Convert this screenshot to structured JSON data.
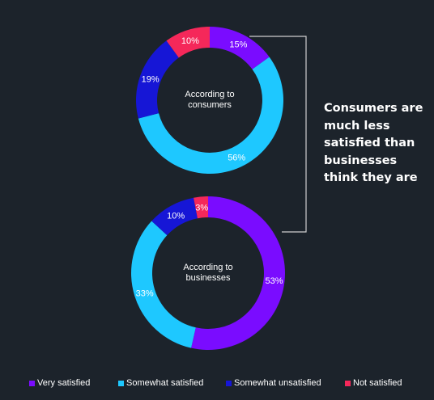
{
  "callout": "Consumers are much less satisfied than businesses think they are",
  "colors": {
    "background": "#1c232b",
    "very_satisfied": "#7a0cff",
    "somewhat_satisfied": "#1ec8ff",
    "somewhat_unsatisfied": "#1616d6",
    "not_satisfied": "#f5285a",
    "connector": "#cfcfcf"
  },
  "legend": [
    {
      "label": "Very satisfied",
      "color": "#7a0cff"
    },
    {
      "label": "Somewhat satisfied",
      "color": "#1ec8ff"
    },
    {
      "label": "Somewhat unsatisfied",
      "color": "#1616d6"
    },
    {
      "label": "Not satisfied",
      "color": "#f5285a"
    }
  ],
  "chart_data": [
    {
      "type": "pie",
      "subtype": "donut",
      "center_label": [
        "According to",
        "consumers"
      ],
      "categories": [
        "Very satisfied",
        "Somewhat satisfied",
        "Somewhat unsatisfied",
        "Not satisfied"
      ],
      "values": [
        15,
        56,
        19,
        10
      ],
      "labels": [
        "15%",
        "56%",
        "19%",
        "10%"
      ]
    },
    {
      "type": "pie",
      "subtype": "donut",
      "center_label": [
        "According to",
        "businesses"
      ],
      "categories": [
        "Very satisfied",
        "Somewhat satisfied",
        "Somewhat unsatisfied",
        "Not satisfied"
      ],
      "values": [
        53,
        33,
        10,
        3
      ],
      "labels": [
        "53%",
        "33%",
        "10%",
        "3%"
      ]
    }
  ]
}
